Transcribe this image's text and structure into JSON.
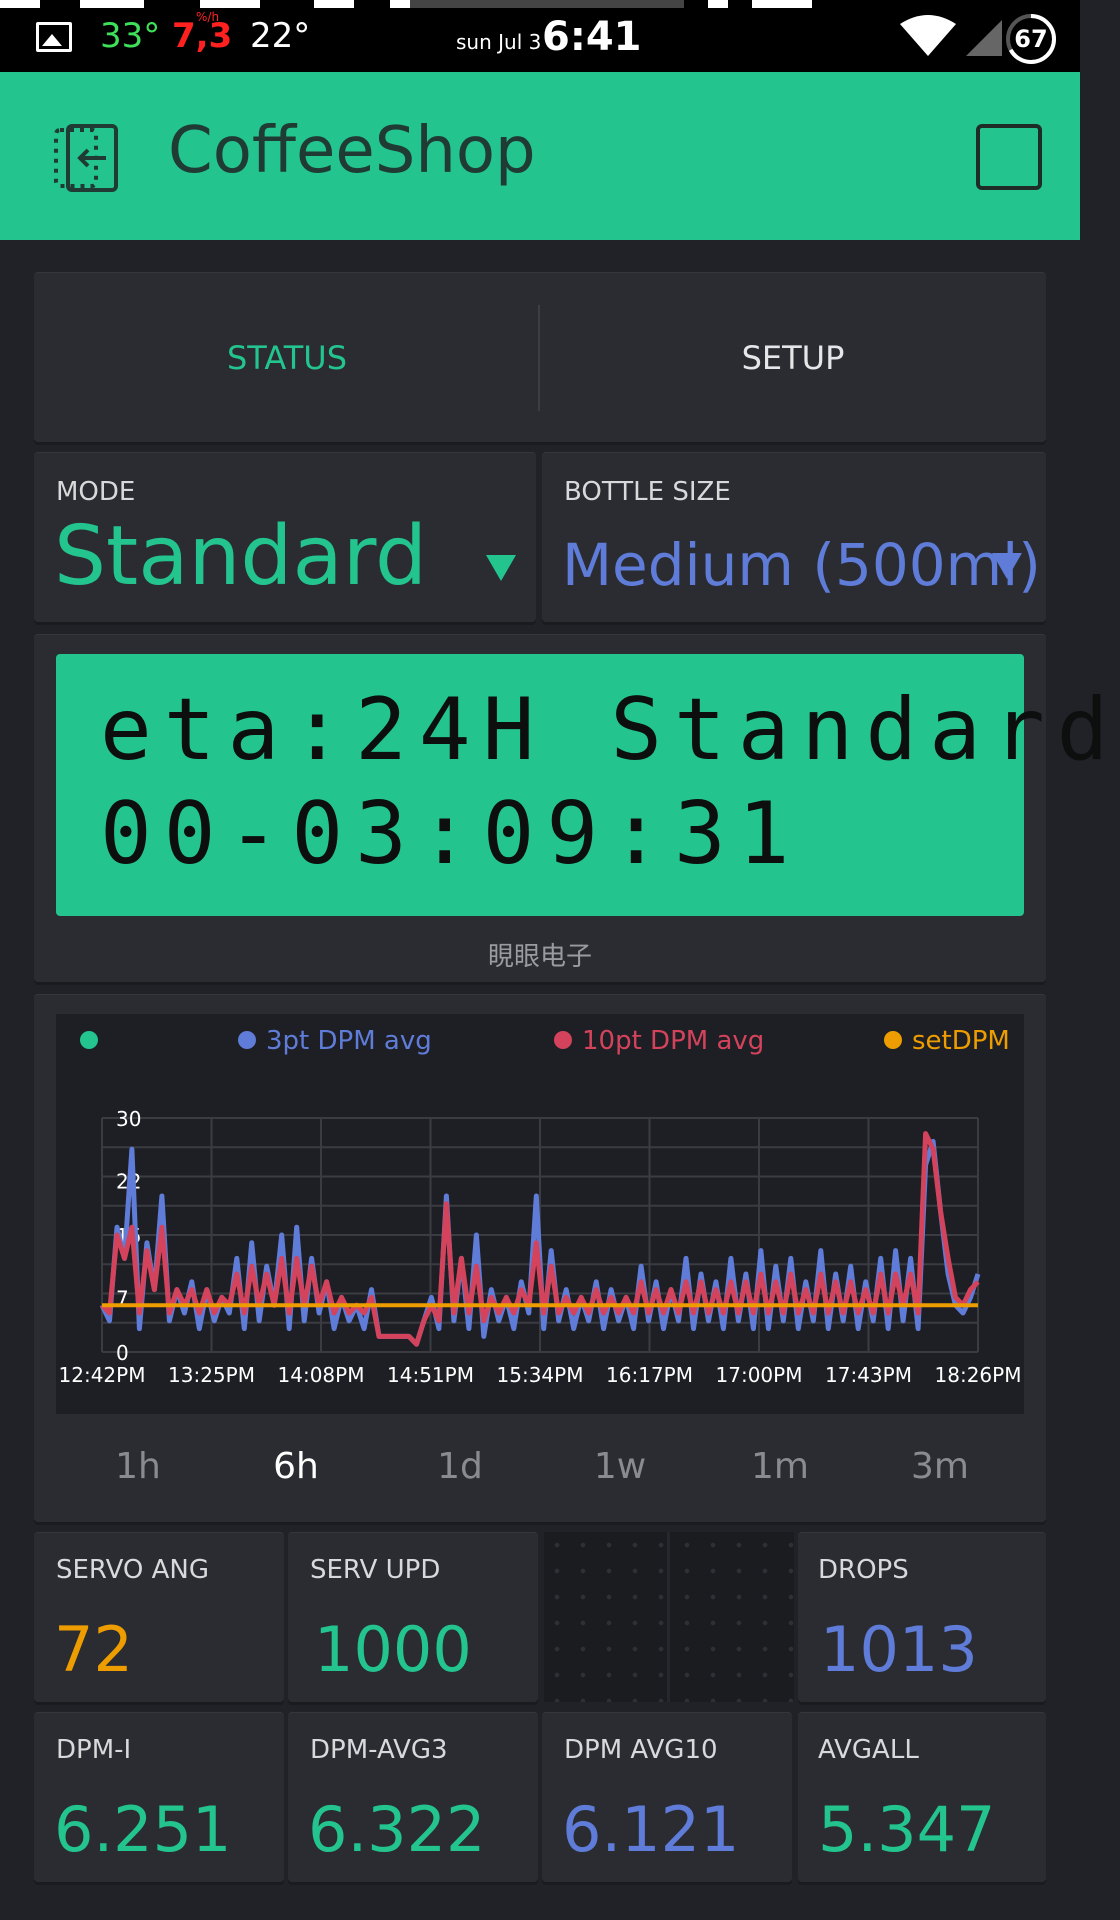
{
  "status_bar": {
    "temp1": "33°",
    "rain_unit": "%/h",
    "rain": "7,3",
    "temp2": "22°",
    "date": "sun Jul 3",
    "time": "6:41",
    "battery": "67"
  },
  "header": {
    "title": "CoffeeShop"
  },
  "tabs": [
    {
      "label": "STATUS",
      "active": true
    },
    {
      "label": "SETUP",
      "active": false
    }
  ],
  "mode": {
    "label": "MODE",
    "value": "Standard"
  },
  "bottle": {
    "label": "BOTTLE SIZE",
    "value": "Medium (500ml)"
  },
  "lcd": {
    "line1": "eta:24H Standard",
    "line2": "00-03:09:31",
    "caption": "睍眼电子"
  },
  "chart_data": {
    "type": "line",
    "legend": [
      {
        "name": "",
        "color": "#23c48e"
      },
      {
        "name": "3pt DPM avg",
        "color": "#5f7cd8"
      },
      {
        "name": "10pt DPM avg",
        "color": "#d3435c"
      },
      {
        "name": "setDPM",
        "color": "#ed9d00"
      }
    ],
    "y_ticks": [
      "30",
      "22",
      "15",
      "7",
      "0"
    ],
    "x_ticks": [
      "12:42PM",
      "13:25PM",
      "14:08PM",
      "14:51PM",
      "15:34PM",
      "16:17PM",
      "17:00PM",
      "17:43PM",
      "18:26PM"
    ],
    "ylim": [
      0,
      30
    ],
    "grid": true,
    "series": [
      {
        "name": "3pt DPM avg",
        "values": [
          6,
          4,
          16,
          12,
          26,
          3,
          14,
          8,
          20,
          4,
          8,
          5,
          9,
          3,
          8,
          4,
          7,
          5,
          12,
          3,
          14,
          4,
          11,
          6,
          15,
          3,
          16,
          4,
          12,
          5,
          9,
          3,
          7,
          4,
          6,
          3,
          8,
          2,
          2,
          2,
          2,
          2,
          1,
          4,
          7,
          3,
          20,
          4,
          12,
          3,
          15,
          2,
          8,
          4,
          7,
          3,
          9,
          5,
          20,
          3,
          13,
          4,
          8,
          3,
          7,
          4,
          9,
          3,
          8,
          4,
          7,
          3,
          11,
          4,
          9,
          3,
          8,
          4,
          12,
          3,
          10,
          4,
          9,
          3,
          12,
          4,
          10,
          3,
          13,
          3,
          11,
          4,
          12,
          3,
          9,
          4,
          13,
          3,
          10,
          4,
          11,
          3,
          9,
          4,
          12,
          3,
          13,
          4,
          12,
          3,
          24,
          27,
          18,
          10,
          6,
          5,
          7,
          10
        ]
      },
      {
        "name": "10pt DPM avg",
        "values": [
          6,
          5,
          15,
          12,
          16,
          5,
          13,
          8,
          16,
          5,
          8,
          6,
          8,
          5,
          8,
          5,
          7,
          6,
          10,
          5,
          11,
          6,
          10,
          6,
          12,
          5,
          12,
          6,
          11,
          6,
          9,
          5,
          7,
          5,
          6,
          5,
          7,
          2,
          2,
          2,
          2,
          2,
          1,
          4,
          6,
          4,
          19,
          5,
          12,
          5,
          11,
          4,
          7,
          5,
          7,
          5,
          8,
          6,
          14,
          5,
          11,
          5,
          7,
          5,
          7,
          5,
          8,
          5,
          7,
          5,
          7,
          5,
          9,
          5,
          8,
          5,
          8,
          5,
          9,
          5,
          9,
          5,
          8,
          5,
          9,
          5,
          9,
          5,
          10,
          5,
          9,
          5,
          10,
          5,
          8,
          5,
          10,
          5,
          9,
          5,
          9,
          5,
          8,
          5,
          10,
          5,
          10,
          6,
          10,
          5,
          28,
          26,
          18,
          12,
          7,
          6,
          8,
          9
        ]
      },
      {
        "name": "setDPM",
        "values": [
          6,
          6
        ]
      }
    ]
  },
  "range_tabs": [
    "1h",
    "6h",
    "1d",
    "1w",
    "1m",
    "3m"
  ],
  "active_range": "6h",
  "values": {
    "servo_ang": {
      "label": "SERVO ANG",
      "value": "72",
      "color": "#ed9d00"
    },
    "serv_upd": {
      "label": "SERV UPD",
      "value": "1000",
      "color": "#23c48e"
    },
    "drops": {
      "label": "DROPS",
      "value": "1013",
      "color": "#5f7cd8"
    },
    "dpm_i": {
      "label": "DPM-I",
      "value": "6.251",
      "color": "#23c48e"
    },
    "dpm_avg3": {
      "label": "DPM-AVG3",
      "value": "6.322",
      "color": "#23c48e"
    },
    "dpm_avg10": {
      "label": "DPM AVG10",
      "value": "6.121",
      "color": "#5f7cd8"
    },
    "avgall": {
      "label": "AVGALL",
      "value": "5.347",
      "color": "#23c48e"
    }
  },
  "colors": {
    "green": "#23c48e",
    "blue": "#5f7cd8",
    "red": "#d3435c",
    "orange": "#ed9d00",
    "background": "#212227",
    "panel": "#2a2c31"
  }
}
